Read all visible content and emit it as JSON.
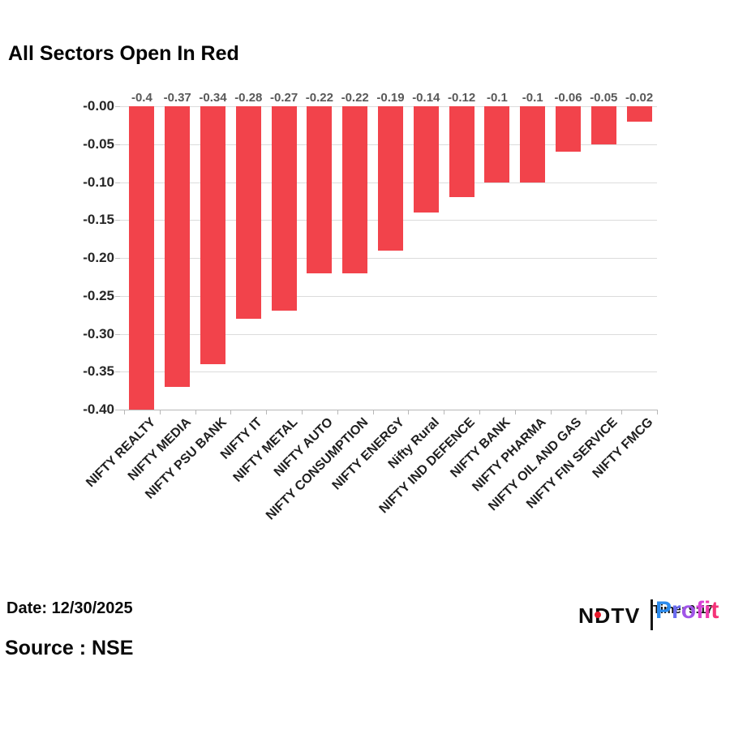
{
  "title": "All Sectors Open In Red",
  "footer": {
    "date": "Date: 12/30/2025",
    "source": "Source : NSE"
  },
  "logo": {
    "ndtv": "NDTV",
    "profit": "Profit",
    "overlay_text": "Time: 9:17",
    "dot_color": "#e8192c",
    "profit_letter_colors": [
      "#2b8bee",
      "#6a6bf0",
      "#a155e8",
      "#d843d8",
      "#ef3aac",
      "#f53378"
    ]
  },
  "chart_data": {
    "type": "bar",
    "title": "All Sectors Open In Red",
    "categories": [
      "NIFTY REALTY",
      "NIFTY MEDIA",
      "NIFTY PSU BANK",
      "NIFTY IT",
      "NIFTY METAL",
      "NIFTY AUTO",
      "NIFTY CONSUMPTION",
      "NIFTY ENERGY",
      "Nifty Rural",
      "NIFTY IND DEFENCE",
      "NIFTY BANK",
      "NIFTY PHARMA",
      "NIFTY OIL AND GAS",
      "NIFTY FIN SERVICE",
      "NIFTY FMCG"
    ],
    "values": [
      -0.4,
      -0.37,
      -0.34,
      -0.28,
      -0.27,
      -0.22,
      -0.22,
      -0.19,
      -0.14,
      -0.12,
      -0.1,
      -0.1,
      -0.06,
      -0.05,
      -0.02
    ],
    "bar_labels": [
      "-0.4",
      "-0.37",
      "-0.34",
      "-0.28",
      "-0.27",
      "-0.22",
      "-0.22",
      "-0.19",
      "-0.14",
      "-0.12",
      "-0.1",
      "-0.1",
      "-0.06",
      "-0.05",
      "-0.02"
    ],
    "y_tick_labels": [
      "-0.00",
      "-0.05",
      "-0.10",
      "-0.15",
      "-0.20",
      "-0.25",
      "-0.30",
      "-0.35",
      "-0.40"
    ],
    "ylim": [
      -0.4,
      0
    ],
    "xlabel": "",
    "ylabel": "",
    "grid": true,
    "legend": false,
    "bar_color": "#f2434b",
    "gridline_color": "#dcdcdc",
    "axis_color": "#b7b7b7",
    "bar_label_color": "#595959",
    "tick_label_color": "#262626"
  }
}
